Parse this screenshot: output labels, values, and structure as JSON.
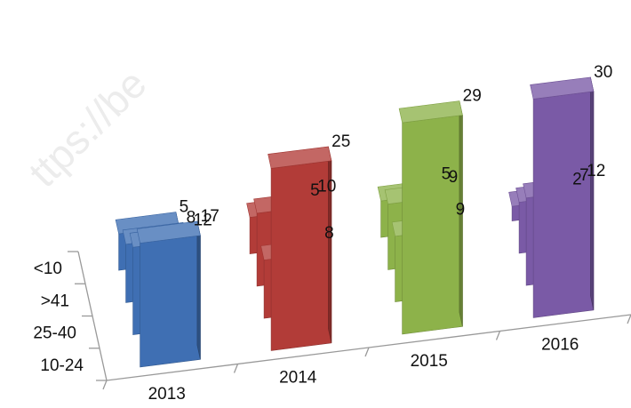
{
  "watermark": "ttps://be",
  "chart_data": {
    "type": "bar",
    "subtype": "3d-column",
    "title": "",
    "xlabel": "",
    "ylabel": "",
    "categories": [
      "2013",
      "2014",
      "2015",
      "2016"
    ],
    "series": [
      {
        "name": "10-24",
        "values": [
          17,
          25,
          29,
          30
        ]
      },
      {
        "name": "25-40",
        "values": [
          12,
          8,
          9,
          12
        ]
      },
      {
        "name": ">41",
        "values": [
          8,
          10,
          9,
          7
        ]
      },
      {
        "name": "<10",
        "values": [
          5,
          5,
          5,
          2
        ]
      }
    ],
    "colors": {
      "2013": "#3f6fb3",
      "2014": "#b23c38",
      "2015": "#8db24a",
      "2016": "#7a5aa6"
    },
    "data_labels": true,
    "gridlines": false
  }
}
